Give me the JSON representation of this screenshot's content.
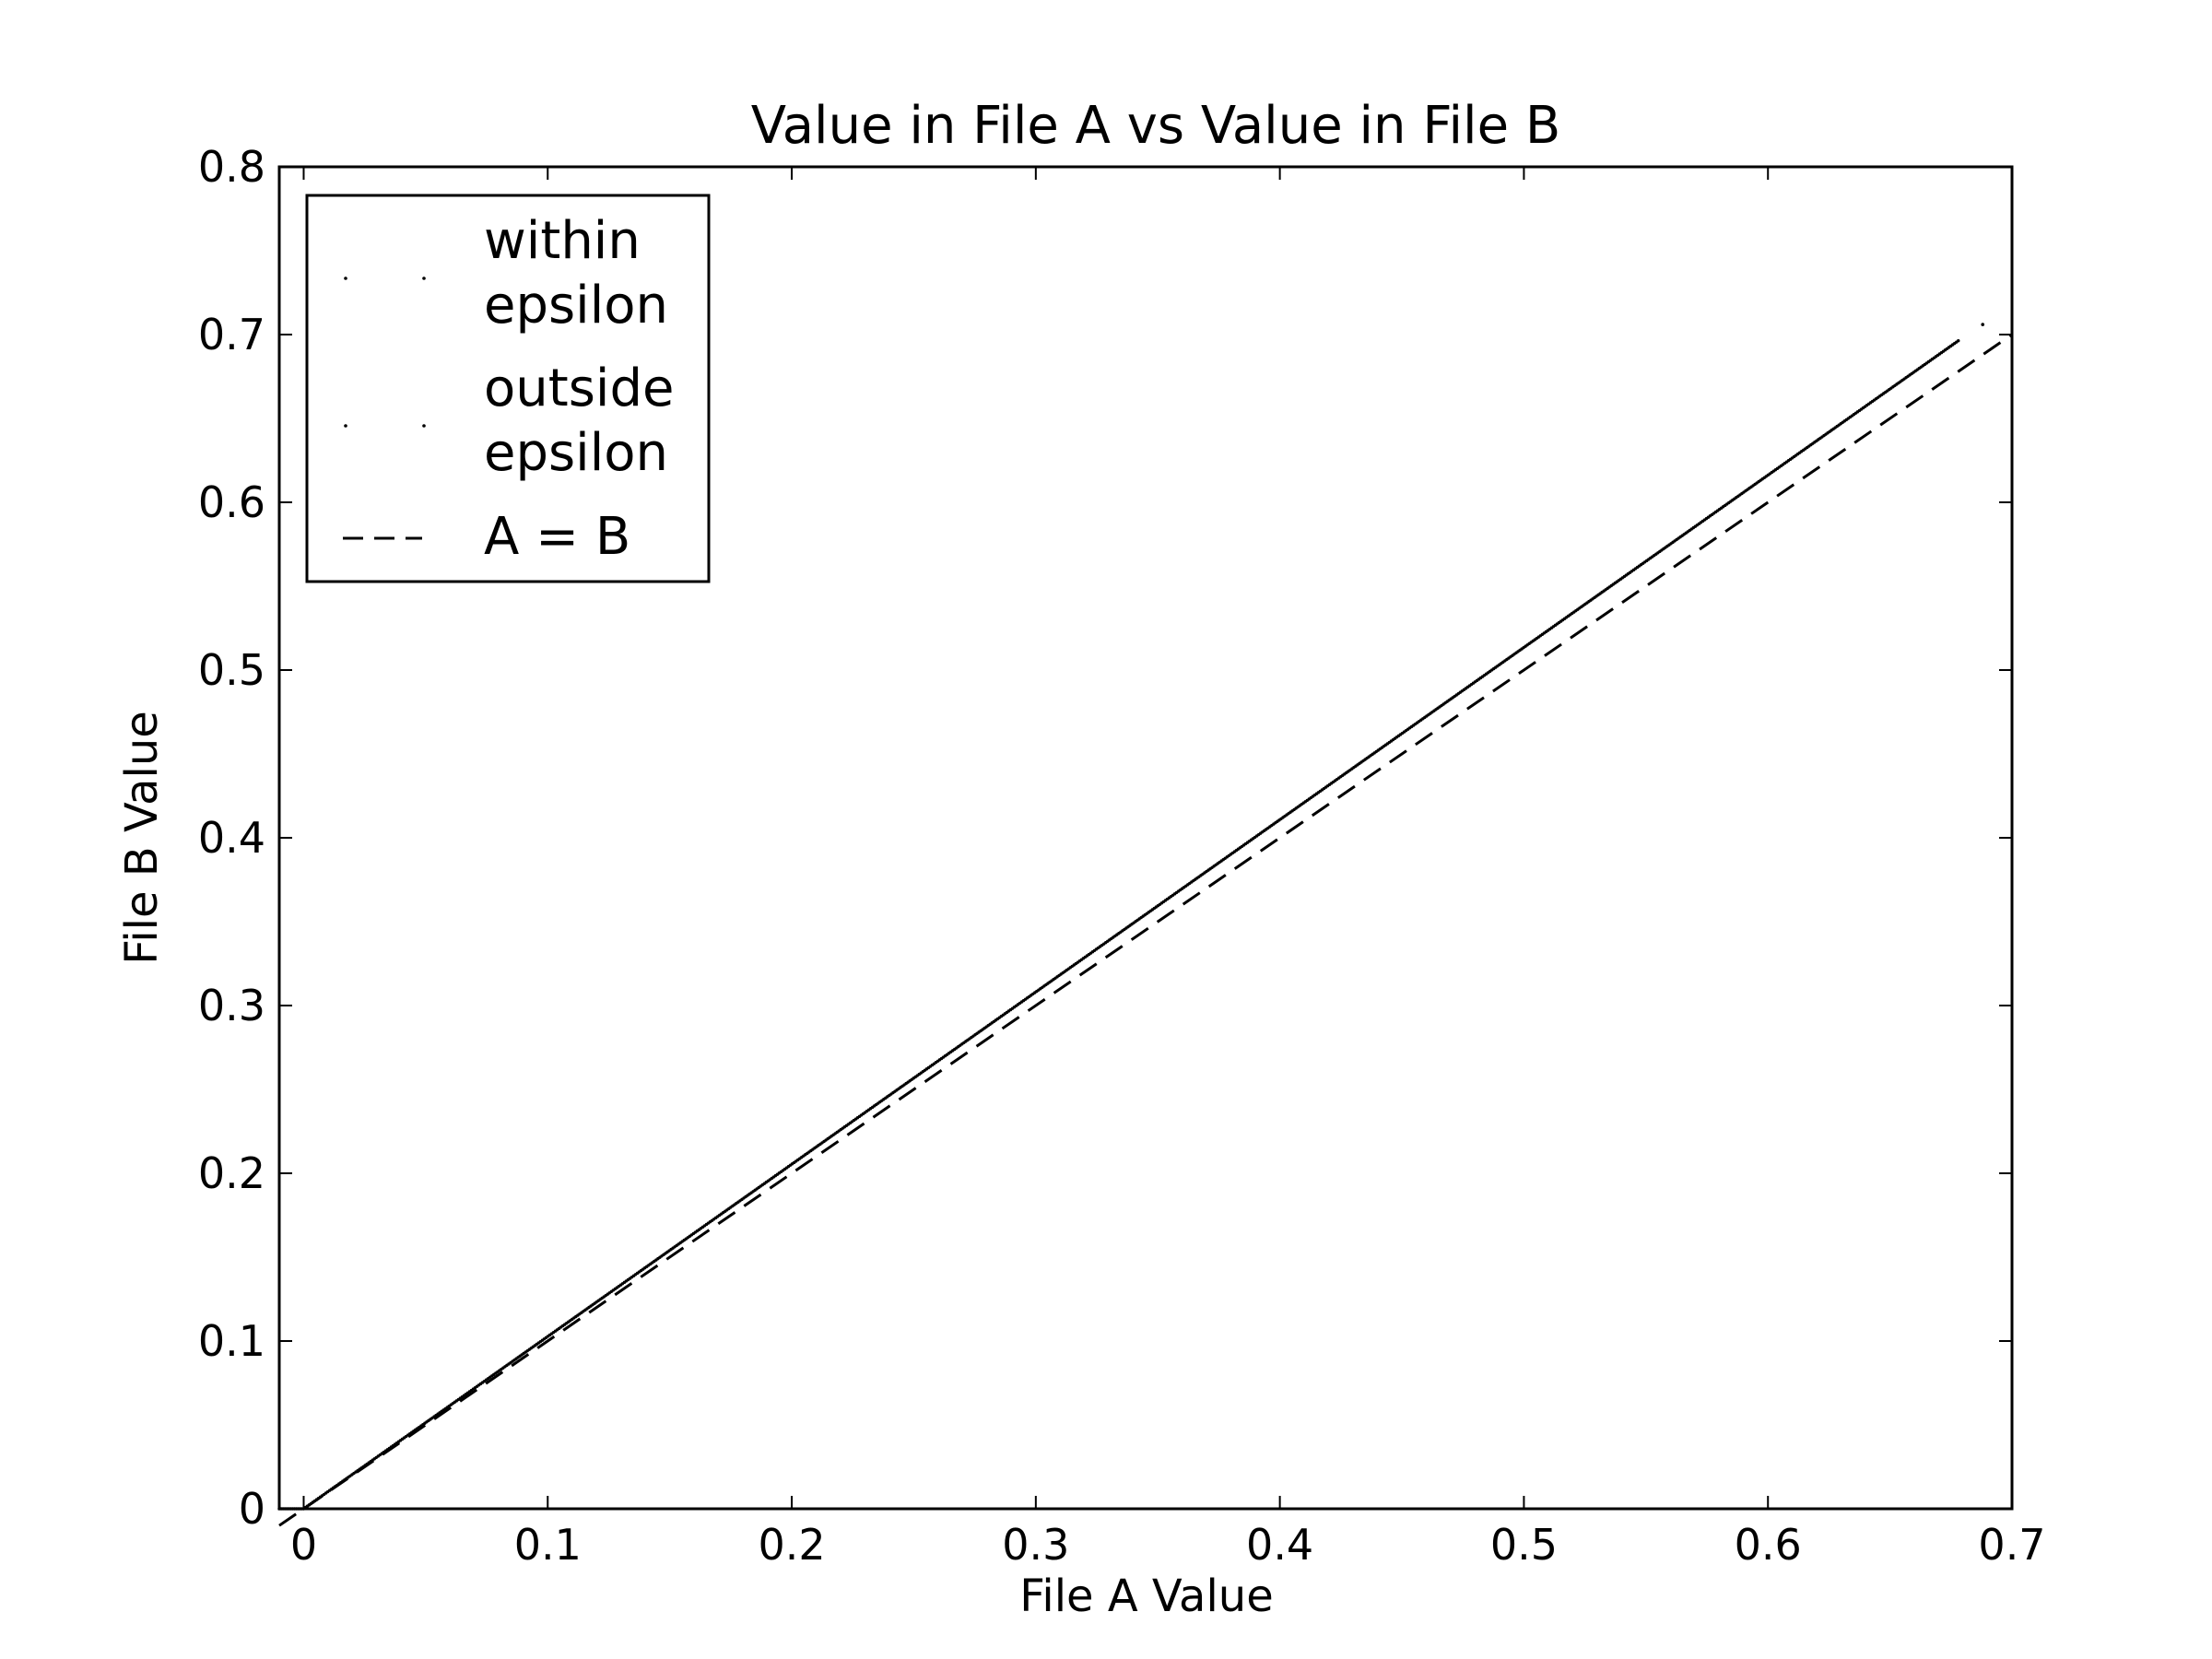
{
  "chart_data": {
    "type": "scatter",
    "title": "Value in File A vs Value in File B",
    "xlabel": "File A Value",
    "ylabel": "File B Value",
    "xlim": [
      -0.01,
      0.7
    ],
    "ylim": [
      0,
      0.8
    ],
    "xticks": [
      0,
      0.1,
      0.2,
      0.3,
      0.4,
      0.5,
      0.6,
      0.7
    ],
    "xtick_labels": [
      "0",
      "0.1",
      "0.2",
      "0.3",
      "0.4",
      "0.5",
      "0.6",
      "0.7"
    ],
    "yticks": [
      0,
      0.1,
      0.2,
      0.3,
      0.4,
      0.5,
      0.6,
      0.7,
      0.8
    ],
    "ytick_labels": [
      "0",
      "0.1",
      "0.2",
      "0.3",
      "0.4",
      "0.5",
      "0.6",
      "0.7",
      "0.8"
    ],
    "grid": false,
    "legend_position": "top-left",
    "series": [
      {
        "name": "within epsilon",
        "name_lines": [
          "within",
          "epsilon"
        ],
        "style": "points",
        "x_start": -0.01,
        "x_end": 0.678,
        "slope": 1.027,
        "intercept": 0.0,
        "x": [
          0.0,
          0.05,
          0.1,
          0.15,
          0.2,
          0.25,
          0.3,
          0.35,
          0.4,
          0.45,
          0.5,
          0.55,
          0.6,
          0.65,
          0.678
        ],
        "y": [
          0.0,
          0.05,
          0.103,
          0.154,
          0.205,
          0.257,
          0.308,
          0.359,
          0.411,
          0.462,
          0.513,
          0.565,
          0.616,
          0.668,
          0.696
        ],
        "color": "#000000"
      },
      {
        "name": "outside epsilon",
        "name_lines": [
          "outside",
          "epsilon"
        ],
        "style": "points",
        "x": [
          0.688
        ],
        "y": [
          0.706
        ],
        "color": "#000000"
      },
      {
        "name": "A = B",
        "name_lines": [
          "A = B"
        ],
        "style": "dashed-line",
        "x": [
          -0.01,
          0.7
        ],
        "y": [
          -0.01,
          0.7
        ],
        "color": "#000000"
      }
    ]
  }
}
